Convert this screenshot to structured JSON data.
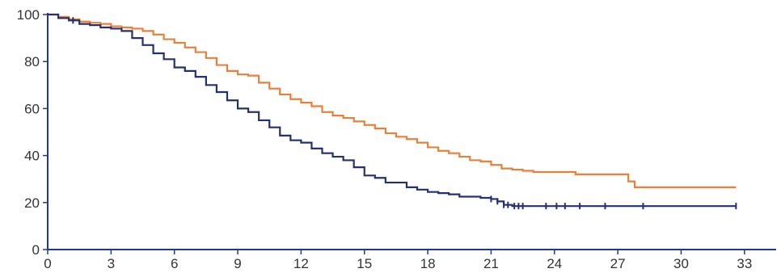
{
  "chart_data": {
    "type": "line",
    "title": "",
    "xlabel": "",
    "ylabel": "",
    "x_ticks": [
      "0",
      "3",
      "6",
      "9",
      "12",
      "15",
      "18",
      "21",
      "24",
      "27",
      "30",
      "33"
    ],
    "y_ticks": [
      "0",
      "20",
      "40",
      "60",
      "80",
      "100"
    ],
    "xlim": [
      0,
      34.5
    ],
    "ylim": [
      0,
      100
    ],
    "grid": false,
    "step": true,
    "colors": {
      "axis": "#1f3a8a",
      "orange": "#e8803a",
      "navy": "#25306e"
    },
    "series": [
      {
        "color": "#e8803a",
        "x": [
          0,
          0.5,
          1,
          1.5,
          2,
          2.5,
          3,
          3.5,
          4,
          4.5,
          5,
          5.5,
          6,
          6.5,
          7,
          7.5,
          8,
          8.5,
          9,
          9.5,
          10,
          10.5,
          11,
          11.5,
          12,
          12.5,
          13,
          13.5,
          14,
          14.5,
          15,
          15.5,
          16,
          16.5,
          17,
          17.5,
          18,
          18.5,
          19,
          19.5,
          20,
          20.5,
          21,
          21.5,
          22,
          22.5,
          23,
          24,
          25,
          26,
          27,
          27.5,
          27.8,
          28.5,
          30,
          32.6
        ],
        "y": [
          100,
          99,
          98,
          97,
          96.5,
          96,
          95,
          94.5,
          94,
          93,
          91.5,
          89.5,
          88,
          86,
          84,
          81.5,
          78.5,
          76,
          74.5,
          74,
          71,
          68.5,
          66,
          64,
          62.5,
          61,
          58.5,
          57,
          56,
          54.5,
          53,
          51.5,
          49.5,
          48,
          47,
          45.5,
          43.5,
          42,
          41,
          39.5,
          38,
          37.5,
          36,
          34.5,
          34,
          33.5,
          33,
          33,
          32,
          32,
          32,
          29,
          26.5,
          26.5,
          26.5,
          26.5
        ],
        "censor_x": []
      },
      {
        "color": "#25306e",
        "x": [
          0,
          0.5,
          1,
          1.5,
          2,
          2.5,
          3,
          3.5,
          4,
          4.5,
          5,
          5.5,
          6,
          6.5,
          7,
          7.5,
          8,
          8.5,
          9,
          9.5,
          10,
          10.5,
          11,
          11.5,
          12,
          12.5,
          13,
          13.5,
          14,
          14.5,
          15,
          15.5,
          16,
          16.5,
          17,
          17.5,
          18,
          18.5,
          19,
          19.5,
          20,
          20.5,
          21,
          21.3,
          21.6,
          22,
          23,
          24,
          27,
          30,
          32.6
        ],
        "y": [
          100,
          98.5,
          97.5,
          96,
          95.5,
          94.5,
          94,
          93,
          90,
          87,
          83.5,
          81,
          77.5,
          76,
          73.5,
          70,
          67,
          63.5,
          60,
          58.5,
          55,
          52,
          48.5,
          46.5,
          45.5,
          43,
          41,
          39.5,
          38,
          35,
          31.5,
          30.5,
          28.5,
          28.5,
          26.5,
          25.5,
          24.5,
          24,
          23.5,
          22.5,
          22.5,
          22,
          21.5,
          20.5,
          19,
          18.5,
          18.5,
          18.5,
          18.5,
          18.5,
          18.5
        ],
        "censor_x": [
          1.2,
          21,
          21.3,
          21.6,
          21.8,
          22.1,
          22.3,
          22.5,
          23.6,
          24.1,
          24.5,
          25.2,
          26.4,
          28.2,
          32.6
        ]
      }
    ]
  }
}
